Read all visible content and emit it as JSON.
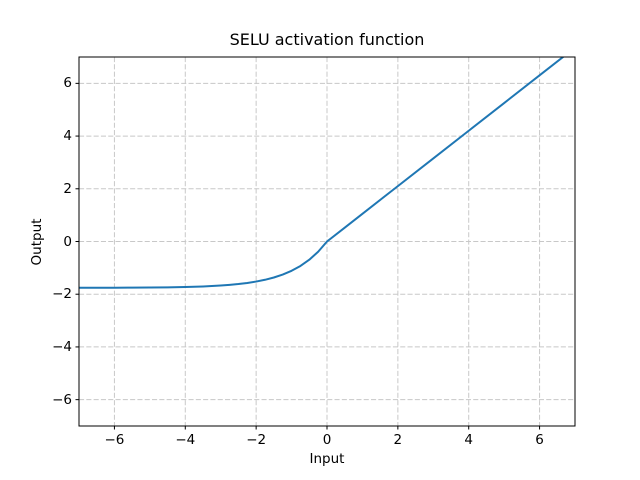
{
  "figure": {
    "background": "#ffffff"
  },
  "chart_data": {
    "type": "line",
    "title": "SELU activation function",
    "xlabel": "Input",
    "ylabel": "Output",
    "xlim": [
      -7,
      7
    ],
    "ylim": [
      -7,
      7
    ],
    "xticks": [
      -6,
      -4,
      -2,
      0,
      2,
      4,
      6
    ],
    "yticks": [
      -6,
      -4,
      -2,
      0,
      2,
      4,
      6
    ],
    "xtick_labels": [
      "−6",
      "−4",
      "−2",
      "0",
      "2",
      "4",
      "6"
    ],
    "ytick_labels": [
      "−6",
      "−4",
      "−2",
      "0",
      "2",
      "4",
      "6"
    ],
    "grid": true,
    "grid_linestyle": "dashed",
    "grid_color": "#c8c8c8",
    "spine_color": "#000000",
    "legend": "none",
    "series": [
      {
        "name": "SELU",
        "color": "#1f77b4",
        "line_width": 2,
        "x": [
          -7,
          -6.5,
          -6,
          -5.5,
          -5,
          -4.5,
          -4,
          -3.5,
          -3,
          -2.75,
          -2.5,
          -2.25,
          -2,
          -1.75,
          -1.5,
          -1.25,
          -1,
          -0.75,
          -0.5,
          -0.25,
          0,
          0.5,
          1,
          2,
          3,
          4,
          5,
          6,
          7
        ],
        "y": [
          -1.7565,
          -1.7555,
          -1.7537,
          -1.7509,
          -1.7462,
          -1.7386,
          -1.7259,
          -1.705,
          -1.6706,
          -1.6457,
          -1.6138,
          -1.5728,
          -1.5202,
          -1.4526,
          -1.3658,
          -1.2544,
          -1.1113,
          -0.9276,
          -0.6918,
          -0.3889,
          0,
          0.5254,
          1.0507,
          2.1014,
          3.1521,
          4.2028,
          5.2535,
          6.3042,
          7.3549
        ]
      }
    ]
  }
}
